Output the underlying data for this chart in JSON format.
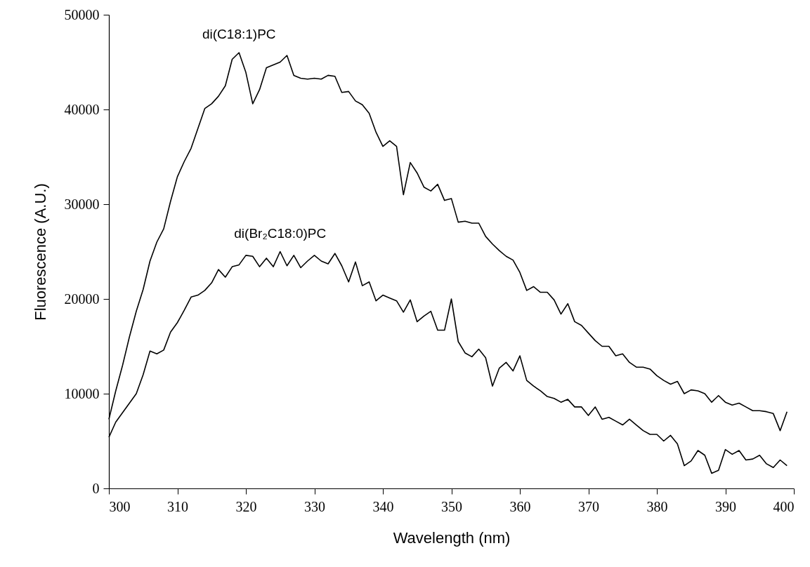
{
  "chart_data": {
    "type": "line",
    "xlabel": "Wavelength (nm)",
    "ylabel": "Fluorescence (A.U.)",
    "xlim": [
      300,
      400
    ],
    "ylim": [
      0,
      50000
    ],
    "xticks": [
      300,
      310,
      320,
      330,
      340,
      350,
      360,
      370,
      380,
      390,
      400
    ],
    "yticks": [
      0,
      10000,
      20000,
      30000,
      40000,
      50000
    ],
    "series": [
      {
        "name": "di(C18:1)PC",
        "color": "#000000",
        "x": [
          300,
          301,
          302,
          303,
          304,
          305,
          306,
          307,
          308,
          309,
          310,
          311,
          312,
          313,
          314,
          315,
          316,
          317,
          318,
          319,
          320,
          321,
          322,
          323,
          324,
          325,
          326,
          327,
          328,
          329,
          330,
          331,
          332,
          333,
          334,
          335,
          336,
          337,
          338,
          339,
          340,
          341,
          342,
          343,
          344,
          345,
          346,
          347,
          348,
          349,
          350,
          351,
          352,
          353,
          354,
          355,
          356,
          357,
          358,
          359,
          360,
          361,
          362,
          363,
          364,
          365,
          366,
          367,
          368,
          369,
          370,
          371,
          372,
          373,
          374,
          375,
          376,
          377,
          378,
          379,
          380,
          381,
          382,
          383,
          384,
          385,
          386,
          387,
          388,
          389,
          390,
          391,
          392,
          393,
          394,
          395,
          396,
          397,
          398,
          399
        ],
        "values": [
          7300,
          10300,
          13000,
          16000,
          18700,
          21000,
          24000,
          26000,
          27400,
          30300,
          32900,
          34500,
          35900,
          38000,
          40100,
          40600,
          41400,
          42500,
          45300,
          46000,
          43900,
          40600,
          42100,
          44400,
          44700,
          45000,
          45700,
          43600,
          43300,
          43200,
          43300,
          43200,
          43600,
          43500,
          41800,
          41900,
          40900,
          40500,
          39600,
          37600,
          36100,
          36700,
          36100,
          31000,
          34400,
          33300,
          31800,
          31400,
          32100,
          30400,
          30600,
          28100,
          28200,
          28000,
          28000,
          26600,
          25800,
          25100,
          24500,
          24100,
          22800,
          20900,
          21300,
          20700,
          20700,
          19900,
          18400,
          19500,
          17600,
          17200,
          16400,
          15600,
          15000,
          15000,
          14000,
          14200,
          13300,
          12800,
          12800,
          12600,
          11900,
          11400,
          11000,
          11300,
          10000,
          10400,
          10300,
          10000,
          9100,
          9800,
          9100,
          8800,
          9000,
          8600,
          8200,
          8200,
          8100,
          7900,
          6100,
          8100
        ]
      },
      {
        "name": "di(Br₂C18:0)PC",
        "color": "#000000",
        "x": [
          300,
          301,
          302,
          303,
          304,
          305,
          306,
          307,
          308,
          309,
          310,
          311,
          312,
          313,
          314,
          315,
          316,
          317,
          318,
          319,
          320,
          321,
          322,
          323,
          324,
          325,
          326,
          327,
          328,
          329,
          330,
          331,
          332,
          333,
          334,
          335,
          336,
          337,
          338,
          339,
          340,
          341,
          342,
          343,
          344,
          345,
          346,
          347,
          348,
          349,
          350,
          351,
          352,
          353,
          354,
          355,
          356,
          357,
          358,
          359,
          360,
          361,
          362,
          363,
          364,
          365,
          366,
          367,
          368,
          369,
          370,
          371,
          372,
          373,
          374,
          375,
          376,
          377,
          378,
          379,
          380,
          381,
          382,
          383,
          384,
          385,
          386,
          387,
          388,
          389,
          390,
          391,
          392,
          393,
          394,
          395,
          396,
          397,
          398,
          399
        ],
        "values": [
          5400,
          7000,
          8000,
          9000,
          10000,
          12000,
          14500,
          14200,
          14600,
          16500,
          17500,
          18800,
          20200,
          20400,
          20900,
          21700,
          23100,
          22300,
          23400,
          23600,
          24600,
          24500,
          23400,
          24300,
          23400,
          25000,
          23500,
          24600,
          23300,
          24000,
          24600,
          24000,
          23700,
          24800,
          23500,
          21800,
          23900,
          21400,
          21800,
          19800,
          20400,
          20100,
          19800,
          18600,
          19900,
          17600,
          18200,
          18700,
          16700,
          16700,
          20000,
          15500,
          14300,
          13900,
          14700,
          13800,
          10800,
          12700,
          13300,
          12400,
          14000,
          11400,
          10800,
          10300,
          9700,
          9500,
          9100,
          9400,
          8600,
          8600,
          7700,
          8600,
          7300,
          7500,
          7100,
          6700,
          7300,
          6700,
          6100,
          5700,
          5700,
          5000,
          5600,
          4700,
          2400,
          2900,
          4000,
          3500,
          1600,
          1900,
          4100,
          3600,
          4000,
          3000,
          3100,
          3500,
          2600,
          2200,
          3000,
          2400
        ]
      }
    ]
  }
}
